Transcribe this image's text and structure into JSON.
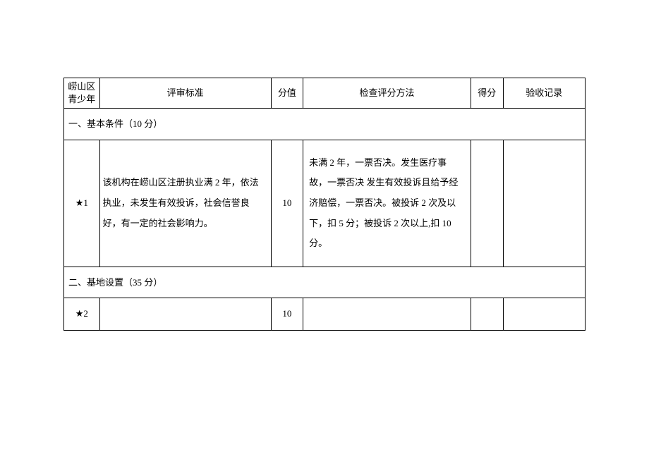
{
  "table": {
    "headers": {
      "col1": "崂山区青少年",
      "col2": "评审标准",
      "col3": "分值",
      "col4": "检查评分方法",
      "col5": "得分",
      "col6": "验收记录"
    },
    "sections": [
      {
        "title": "一、基本条件（10 分）",
        "rows": [
          {
            "index": "★1",
            "standard": "该机构在崂山区注册执业满 2 年，依法执业，未发生有效投诉，社会信誉良好，有一定的社会影响力。",
            "score": "10",
            "method": "未满 2 年，一票否决。发生医疗事故，一票否决 发生有效投诉且给予经济赔偿，一票否决。被投诉 2 次及以下，扣 5 分；被投诉 2 次以上,扣 10 分。",
            "grade": "",
            "record": ""
          }
        ]
      },
      {
        "title": "二、基地设置（35 分）",
        "rows": [
          {
            "index": "★2",
            "standard": "",
            "score": "10",
            "method": "",
            "grade": "",
            "record": ""
          }
        ]
      }
    ]
  }
}
